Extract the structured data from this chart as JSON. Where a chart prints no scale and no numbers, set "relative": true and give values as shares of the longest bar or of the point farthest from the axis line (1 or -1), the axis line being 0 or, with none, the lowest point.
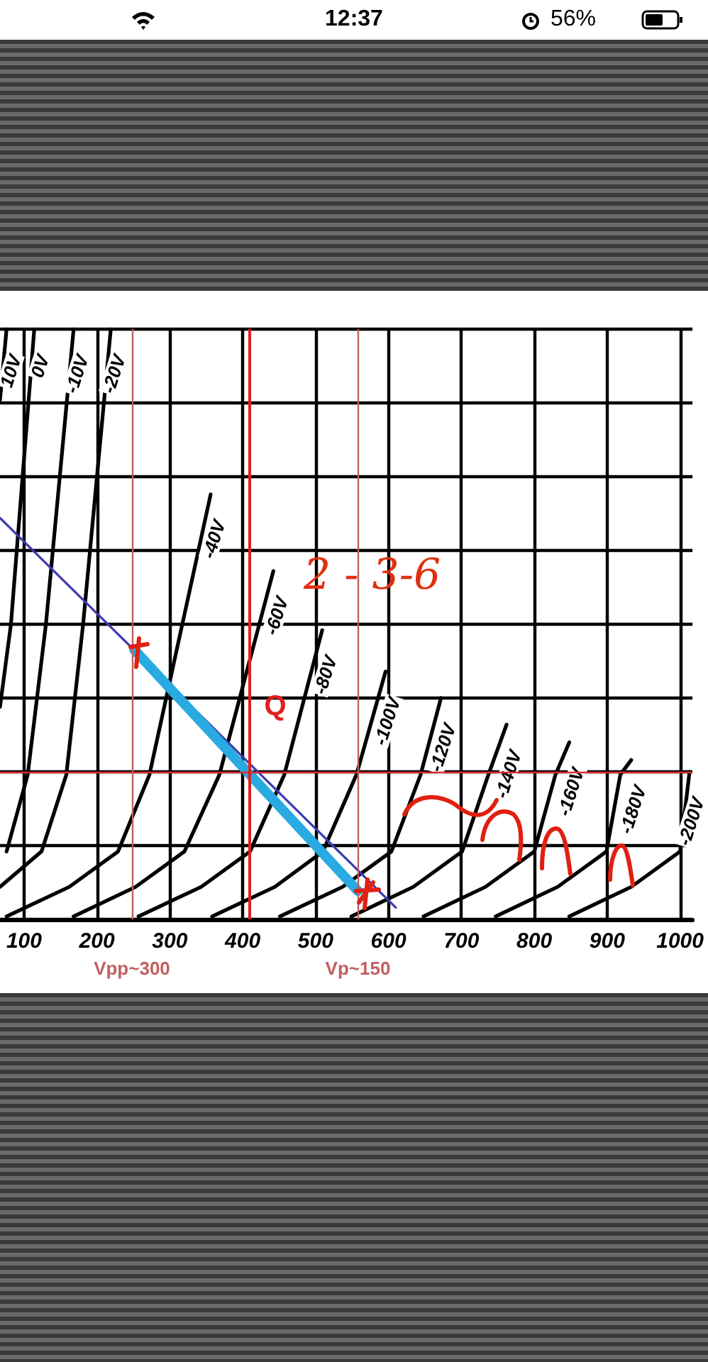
{
  "chart_data": {
    "type": "line",
    "relative": true,
    "xlim": [
      67,
      1017
    ],
    "xticks": [
      100,
      200,
      300,
      400,
      500,
      600,
      700,
      800,
      900,
      1000
    ],
    "grid": true,
    "legend": false,
    "marker": "none",
    "line_style": "solid",
    "series": [
      {
        "name": "10V",
        "color": "#000000",
        "x": [
          67,
          76
        ],
        "values": [
          0.88,
          1.0
        ]
      },
      {
        "name": "0V",
        "color": "#000000",
        "x": [
          67,
          82,
          114
        ],
        "values": [
          0.36,
          0.5,
          1.0
        ]
      },
      {
        "name": "-10V",
        "color": "#000000",
        "x": [
          76,
          105,
          130,
          168
        ],
        "values": [
          0.115,
          0.245,
          0.5,
          1.0
        ]
      },
      {
        "name": "-20V",
        "color": "#000000",
        "x": [
          67,
          124,
          158,
          181,
          219
        ],
        "values": [
          0.055,
          0.115,
          0.245,
          0.5,
          1.0
        ]
      },
      {
        "name": "-40V",
        "color": "#000000",
        "x": [
          76,
          162,
          229,
          272,
          356
        ],
        "values": [
          0.005,
          0.055,
          0.115,
          0.245,
          0.72
        ]
      },
      {
        "name": "-60V",
        "color": "#000000",
        "x": [
          168,
          253,
          320,
          368,
          442
        ],
        "values": [
          0.005,
          0.055,
          0.115,
          0.245,
          0.59
        ]
      },
      {
        "name": "-80V",
        "color": "#000000",
        "x": [
          257,
          343,
          410,
          457,
          509
        ],
        "values": [
          0.005,
          0.055,
          0.115,
          0.245,
          0.49
        ]
      },
      {
        "name": "-100V",
        "color": "#000000",
        "x": [
          358,
          444,
          510,
          556,
          596
        ],
        "values": [
          0.005,
          0.055,
          0.115,
          0.245,
          0.42
        ]
      },
      {
        "name": "-120V",
        "color": "#000000",
        "x": [
          451,
          537,
          604,
          644,
          672
        ],
        "values": [
          0.005,
          0.055,
          0.115,
          0.245,
          0.375
        ]
      },
      {
        "name": "-140V",
        "color": "#000000",
        "x": [
          549,
          634,
          701,
          737,
          762
        ],
        "values": [
          0.005,
          0.055,
          0.115,
          0.245,
          0.33
        ]
      },
      {
        "name": "-160V",
        "color": "#000000",
        "x": [
          648,
          733,
          800,
          829,
          848
        ],
        "values": [
          0.005,
          0.055,
          0.115,
          0.245,
          0.3
        ]
      },
      {
        "name": "-180V",
        "color": "#000000",
        "x": [
          747,
          832,
          899,
          918,
          933
        ],
        "values": [
          0.005,
          0.055,
          0.115,
          0.245,
          0.27
        ]
      },
      {
        "name": "-200V",
        "color": "#000000",
        "x": [
          848,
          933,
          1000,
          1013
        ],
        "values": [
          0.005,
          0.055,
          0.115,
          0.25
        ]
      },
      {
        "color": "#3b3bb0",
        "x": [
          67,
          610
        ],
        "values": [
          0.68,
          0.02
        ]
      },
      {
        "color": "#29aae1",
        "x": [
          251,
          558
        ],
        "values": [
          0.457,
          0.048
        ]
      }
    ],
    "ref_lines": [
      {
        "axis": "y",
        "value": 0.25,
        "label": null,
        "color": "#d03030"
      },
      {
        "axis": "x",
        "value": 410,
        "label": "Q",
        "color": "#e02020"
      },
      {
        "axis": "x",
        "value": 248,
        "label": "Vpp~300",
        "color": "#c06060"
      },
      {
        "axis": "x",
        "value": 558,
        "label": "Vp~150",
        "color": "#c06060"
      }
    ],
    "annotations": [
      "2 - 3-6",
      "12:37",
      "56%"
    ]
  }
}
